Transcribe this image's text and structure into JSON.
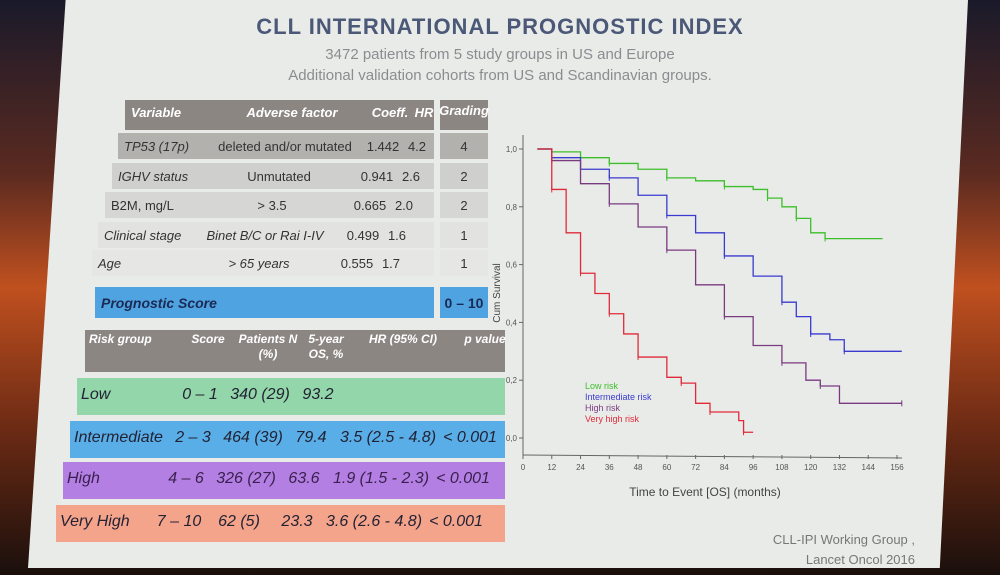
{
  "title": "CLL INTERNATIONAL PROGNOSTIC INDEX",
  "subtitle": [
    "3472 patients from 5 study groups in US and Europe",
    "Additional validation cohorts from US and Scandinavian groups."
  ],
  "index_table": {
    "headers": [
      "Variable",
      "Adverse factor",
      "Coeff.",
      "HR",
      "Grading"
    ],
    "rows": [
      [
        "TP53 (17p)",
        "deleted and/or mutated",
        "1.442",
        "4.2",
        "4"
      ],
      [
        "IGHV status",
        "Unmutated",
        "0.941",
        "2.6",
        "2"
      ],
      [
        "B2M, mg/L",
        "> 3.5",
        "0.665",
        "2.0",
        "2"
      ],
      [
        "Clinical stage",
        "Binet B/C or Rai I-IV",
        "0.499",
        "1.6",
        "1"
      ],
      [
        "Age",
        "> 65 years",
        "0.555",
        "1.7",
        "1"
      ]
    ],
    "score_label": "Prognostic Score",
    "score_range": "0 – 10"
  },
  "risk_table": {
    "headers": [
      "Risk group",
      "Score",
      "Patients N (%)",
      "5-year OS, %",
      "HR (95% CI)",
      "p value"
    ],
    "rows": [
      [
        "Low",
        "0 – 1",
        "340 (29)",
        "93.2",
        "",
        ""
      ],
      [
        "Intermediate",
        "2 – 3",
        "464 (39)",
        "79.4",
        "3.5 (2.5 - 4.8)",
        "< 0.001"
      ],
      [
        "High",
        "4 – 6",
        "326 (27)",
        "63.6",
        "1.9 (1.5 - 2.3)",
        "< 0.001"
      ],
      [
        "Very High",
        "7 – 10",
        "62 (5)",
        "23.3",
        "3.6 (2.6 - 4.8)",
        "< 0.001"
      ]
    ],
    "colors": [
      "#92d6aa",
      "#5aaee8",
      "#b47fe2",
      "#f5a48c"
    ]
  },
  "chart_data": {
    "type": "line",
    "title": "",
    "xlabel": "Time to Event [OS] (months)",
    "ylabel": "Cum Survival",
    "xlim": [
      0,
      156
    ],
    "ylim": [
      0,
      1
    ],
    "xticks": [
      "0",
      "12",
      "24",
      "36",
      "48",
      "60",
      "72",
      "84",
      "96",
      "108",
      "120",
      "132",
      "144",
      "156"
    ],
    "yticks": [
      "0,0",
      "0,2",
      "0,4",
      "0,6",
      "0,8",
      "1,0"
    ],
    "legend_position": "bottom-left",
    "series": [
      {
        "name": "Low risk",
        "color": "#3cbf2a",
        "x": [
          6,
          12,
          24,
          36,
          48,
          60,
          72,
          84,
          96,
          102,
          108,
          114,
          120,
          126,
          150
        ],
        "y": [
          1,
          0.99,
          0.97,
          0.95,
          0.93,
          0.9,
          0.89,
          0.87,
          0.86,
          0.83,
          0.8,
          0.76,
          0.71,
          0.69,
          0.69
        ]
      },
      {
        "name": "Intermediate risk",
        "color": "#3a3ad0",
        "x": [
          6,
          12,
          24,
          36,
          48,
          60,
          72,
          84,
          96,
          108,
          114,
          120,
          128,
          134,
          158
        ],
        "y": [
          1,
          0.97,
          0.93,
          0.9,
          0.84,
          0.77,
          0.71,
          0.63,
          0.56,
          0.47,
          0.42,
          0.36,
          0.34,
          0.3,
          0.3
        ]
      },
      {
        "name": "High risk",
        "color": "#7a3a80",
        "x": [
          6,
          12,
          24,
          36,
          48,
          60,
          72,
          84,
          96,
          108,
          118,
          124,
          132,
          158
        ],
        "y": [
          1,
          0.96,
          0.88,
          0.81,
          0.73,
          0.65,
          0.53,
          0.42,
          0.32,
          0.26,
          0.2,
          0.18,
          0.12,
          0.12
        ]
      },
      {
        "name": "Very high risk",
        "color": "#e02a3a",
        "x": [
          6,
          12,
          18,
          24,
          30,
          36,
          42,
          48,
          60,
          66,
          72,
          78,
          90,
          92,
          96
        ],
        "y": [
          1,
          0.86,
          0.71,
          0.57,
          0.5,
          0.43,
          0.36,
          0.28,
          0.21,
          0.19,
          0.12,
          0.09,
          0.06,
          0.02,
          0.02
        ]
      }
    ]
  },
  "footer": [
    "CLL-IPI Working Group ,",
    "Lancet Oncol 2016"
  ]
}
